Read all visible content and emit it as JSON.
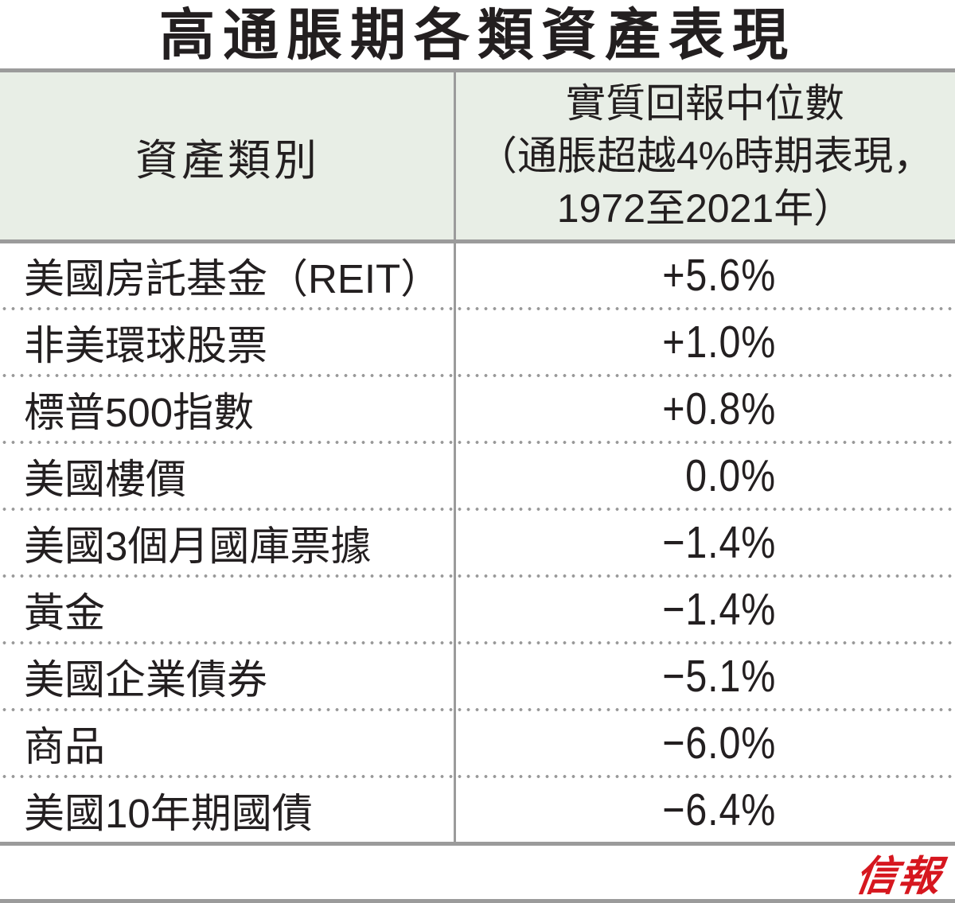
{
  "title": "高通脹期各類資產表現",
  "table": {
    "header": {
      "asset_class_label": "資產類別",
      "return_label_line1": "實質回報中位數",
      "return_label_line2": "（通脹超越4%時期表現，",
      "return_label_line3": "1972至2021年）"
    },
    "rows": [
      {
        "asset": "美國房託基金（REIT）",
        "value": "+5.6%"
      },
      {
        "asset": "非美環球股票",
        "value": "+1.0%"
      },
      {
        "asset": "標普500指數",
        "value": "+0.8%"
      },
      {
        "asset": "美國樓價",
        "value": "0.0%"
      },
      {
        "asset": "美國3個月國庫票據",
        "value": "−1.4%"
      },
      {
        "asset": "黃金",
        "value": "−1.4%"
      },
      {
        "asset": "美國企業債券",
        "value": "−5.1%"
      },
      {
        "asset": "商品",
        "value": "−6.0%"
      },
      {
        "asset": "美國10年期國債",
        "value": "−6.4%"
      }
    ]
  },
  "footer": {
    "logo_text": "信報"
  },
  "colors": {
    "header_bg": "#e8eee6",
    "rule_gray": "#9b9b9b",
    "dot_gray": "#999999",
    "text_black": "#231f20",
    "logo_red": "#d6171f"
  },
  "chart_data": {
    "type": "table",
    "title": "高通脹期各類資產表現",
    "columns": [
      "資產類別",
      "實質回報中位數（通脹超越4%時期表現，1972至2021年）"
    ],
    "categories": [
      "美國房託基金（REIT）",
      "非美環球股票",
      "標普500指數",
      "美國樓價",
      "美國3個月國庫票據",
      "黃金",
      "美國企業債券",
      "商品",
      "美國10年期國債"
    ],
    "values_percent": [
      5.6,
      1.0,
      0.8,
      0.0,
      -1.4,
      -1.4,
      -5.1,
      -6.0,
      -6.4
    ],
    "value_labels": [
      "+5.6%",
      "+1.0%",
      "+0.8%",
      "0.0%",
      "−1.4%",
      "−1.4%",
      "−5.1%",
      "−6.0%",
      "−6.4%"
    ],
    "source_logo": "信報"
  }
}
